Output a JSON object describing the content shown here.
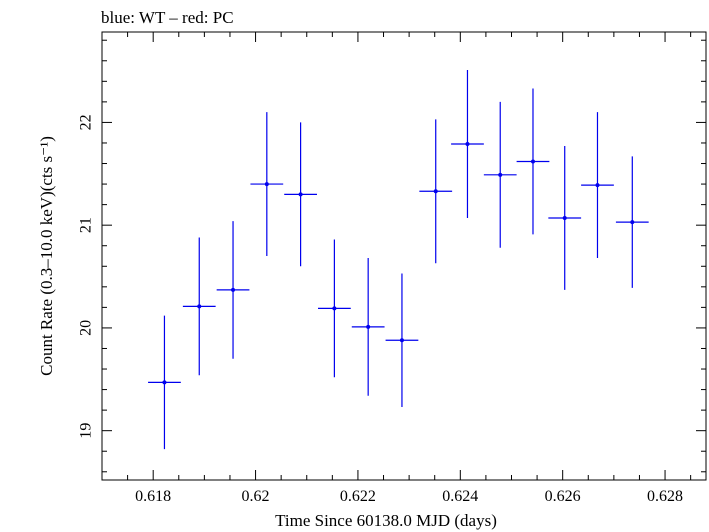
{
  "chart_data": {
    "type": "scatter",
    "title": "blue: WT – red: PC",
    "xlabel": "Time Since 60138.0 MJD (days)",
    "ylabel": "Count Rate (0.3–10.0 keV)(cts s⁻¹)",
    "xlim": [
      0.617,
      0.6288
    ],
    "ylim": [
      18.52,
      22.88
    ],
    "x_ticks": [
      0.618,
      0.62,
      0.622,
      0.624,
      0.626,
      0.628
    ],
    "x_tick_labels": [
      "0.618",
      "0.62",
      "0.622",
      "0.624",
      "0.626",
      "0.628"
    ],
    "y_ticks": [
      19,
      20,
      21,
      22
    ],
    "y_tick_labels": [
      "19",
      "20",
      "21",
      "22"
    ],
    "grid": false,
    "colors": {
      "WT": "#0000ee",
      "axes": "#000000"
    },
    "series": [
      {
        "name": "WT",
        "points": [
          {
            "x": 0.61822,
            "y": 19.47,
            "xerr": 0.00032,
            "yerr": 0.65
          },
          {
            "x": 0.6189,
            "y": 20.21,
            "xerr": 0.00032,
            "yerr": 0.67
          },
          {
            "x": 0.61956,
            "y": 20.37,
            "xerr": 0.00032,
            "yerr": 0.67
          },
          {
            "x": 0.62022,
            "y": 21.4,
            "xerr": 0.00032,
            "yerr": 0.7
          },
          {
            "x": 0.62088,
            "y": 21.3,
            "xerr": 0.00032,
            "yerr": 0.7
          },
          {
            "x": 0.62154,
            "y": 20.19,
            "xerr": 0.00032,
            "yerr": 0.67
          },
          {
            "x": 0.6222,
            "y": 20.01,
            "xerr": 0.00032,
            "yerr": 0.67
          },
          {
            "x": 0.62286,
            "y": 19.88,
            "xerr": 0.00032,
            "yerr": 0.65
          },
          {
            "x": 0.62352,
            "y": 21.33,
            "xerr": 0.00032,
            "yerr": 0.7
          },
          {
            "x": 0.62414,
            "y": 21.79,
            "xerr": 0.00032,
            "yerr": 0.72
          },
          {
            "x": 0.62478,
            "y": 21.49,
            "xerr": 0.00032,
            "yerr": 0.71
          },
          {
            "x": 0.62542,
            "y": 21.62,
            "xerr": 0.00032,
            "yerr": 0.71
          },
          {
            "x": 0.62604,
            "y": 21.07,
            "xerr": 0.00032,
            "yerr": 0.7
          },
          {
            "x": 0.62668,
            "y": 21.39,
            "xerr": 0.00032,
            "yerr": 0.71
          },
          {
            "x": 0.62736,
            "y": 21.03,
            "xerr": 0.00032,
            "yerr": 0.64
          }
        ]
      }
    ]
  }
}
